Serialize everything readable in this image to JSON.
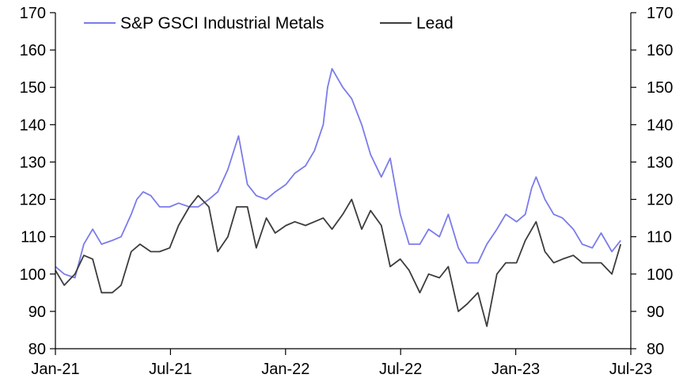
{
  "chart_data": {
    "type": "line",
    "title": "",
    "xlabel": "",
    "ylabel": "",
    "ylim": [
      80,
      170
    ],
    "y_ticks": [
      80,
      90,
      100,
      110,
      120,
      130,
      140,
      150,
      160,
      170
    ],
    "y_ticks_right": [
      80,
      90,
      100,
      110,
      120,
      130,
      140,
      150,
      160,
      170
    ],
    "x_range": [
      "2021-01-01",
      "2023-07-01"
    ],
    "x_ticks": [
      "Jan-21",
      "Jul-21",
      "Jan-22",
      "Jul-22",
      "Jan-23",
      "Jul-23"
    ],
    "grid": false,
    "legend_position": "top",
    "series": [
      {
        "name": "S&P GSCI Industrial Metals",
        "color": "#7b7bea",
        "x": [
          "2021-01-01",
          "2021-01-15",
          "2021-02-01",
          "2021-02-15",
          "2021-03-01",
          "2021-03-15",
          "2021-04-01",
          "2021-04-15",
          "2021-05-01",
          "2021-05-10",
          "2021-05-20",
          "2021-06-01",
          "2021-06-15",
          "2021-07-01",
          "2021-07-15",
          "2021-08-01",
          "2021-08-15",
          "2021-09-01",
          "2021-09-15",
          "2021-10-01",
          "2021-10-18",
          "2021-11-01",
          "2021-11-15",
          "2021-12-01",
          "2021-12-15",
          "2022-01-01",
          "2022-01-15",
          "2022-02-01",
          "2022-02-15",
          "2022-03-01",
          "2022-03-08",
          "2022-03-15",
          "2022-04-01",
          "2022-04-15",
          "2022-05-01",
          "2022-05-15",
          "2022-06-01",
          "2022-06-15",
          "2022-07-01",
          "2022-07-15",
          "2022-08-01",
          "2022-08-15",
          "2022-09-01",
          "2022-09-15",
          "2022-10-01",
          "2022-10-15",
          "2022-11-01",
          "2022-11-15",
          "2022-12-01",
          "2022-12-15",
          "2023-01-01",
          "2023-01-15",
          "2023-01-25",
          "2023-02-01",
          "2023-02-15",
          "2023-03-01",
          "2023-03-15",
          "2023-04-01",
          "2023-04-15",
          "2023-05-01",
          "2023-05-15",
          "2023-06-01",
          "2023-06-15"
        ],
        "values": [
          102,
          100,
          99,
          108,
          112,
          108,
          109,
          110,
          116,
          120,
          122,
          121,
          118,
          118,
          119,
          118,
          118,
          120,
          122,
          128,
          137,
          124,
          121,
          120,
          122,
          124,
          127,
          129,
          133,
          140,
          150,
          155,
          150,
          147,
          140,
          132,
          126,
          131,
          116,
          108,
          108,
          112,
          110,
          116,
          107,
          103,
          103,
          108,
          112,
          116,
          114,
          116,
          123,
          126,
          120,
          116,
          115,
          112,
          108,
          107,
          111,
          106,
          109
        ]
      },
      {
        "name": "Lead",
        "color": "#3c3c3c",
        "x": [
          "2021-01-01",
          "2021-01-15",
          "2021-02-01",
          "2021-02-15",
          "2021-03-01",
          "2021-03-15",
          "2021-04-01",
          "2021-04-15",
          "2021-05-01",
          "2021-05-15",
          "2021-06-01",
          "2021-06-15",
          "2021-07-01",
          "2021-07-15",
          "2021-08-01",
          "2021-08-15",
          "2021-09-01",
          "2021-09-15",
          "2021-10-01",
          "2021-10-15",
          "2021-11-01",
          "2021-11-15",
          "2021-12-01",
          "2021-12-15",
          "2022-01-01",
          "2022-01-15",
          "2022-02-01",
          "2022-02-15",
          "2022-03-01",
          "2022-03-15",
          "2022-04-01",
          "2022-04-15",
          "2022-05-01",
          "2022-05-15",
          "2022-06-01",
          "2022-06-15",
          "2022-07-01",
          "2022-07-15",
          "2022-08-01",
          "2022-08-15",
          "2022-09-01",
          "2022-09-15",
          "2022-10-01",
          "2022-10-15",
          "2022-11-01",
          "2022-11-15",
          "2022-12-01",
          "2022-12-15",
          "2023-01-01",
          "2023-01-15",
          "2023-02-01",
          "2023-02-15",
          "2023-03-01",
          "2023-03-15",
          "2023-04-01",
          "2023-04-15",
          "2023-05-01",
          "2023-05-15",
          "2023-06-01",
          "2023-06-15"
        ],
        "values": [
          101,
          97,
          100,
          105,
          104,
          95,
          95,
          97,
          106,
          108,
          106,
          106,
          107,
          113,
          118,
          121,
          118,
          106,
          110,
          118,
          118,
          107,
          115,
          111,
          113,
          114,
          113,
          114,
          115,
          112,
          116,
          120,
          112,
          117,
          113,
          102,
          104,
          101,
          95,
          100,
          99,
          102,
          90,
          92,
          95,
          86,
          100,
          103,
          103,
          109,
          114,
          106,
          103,
          104,
          105,
          103,
          103,
          103,
          100,
          108
        ]
      }
    ]
  }
}
